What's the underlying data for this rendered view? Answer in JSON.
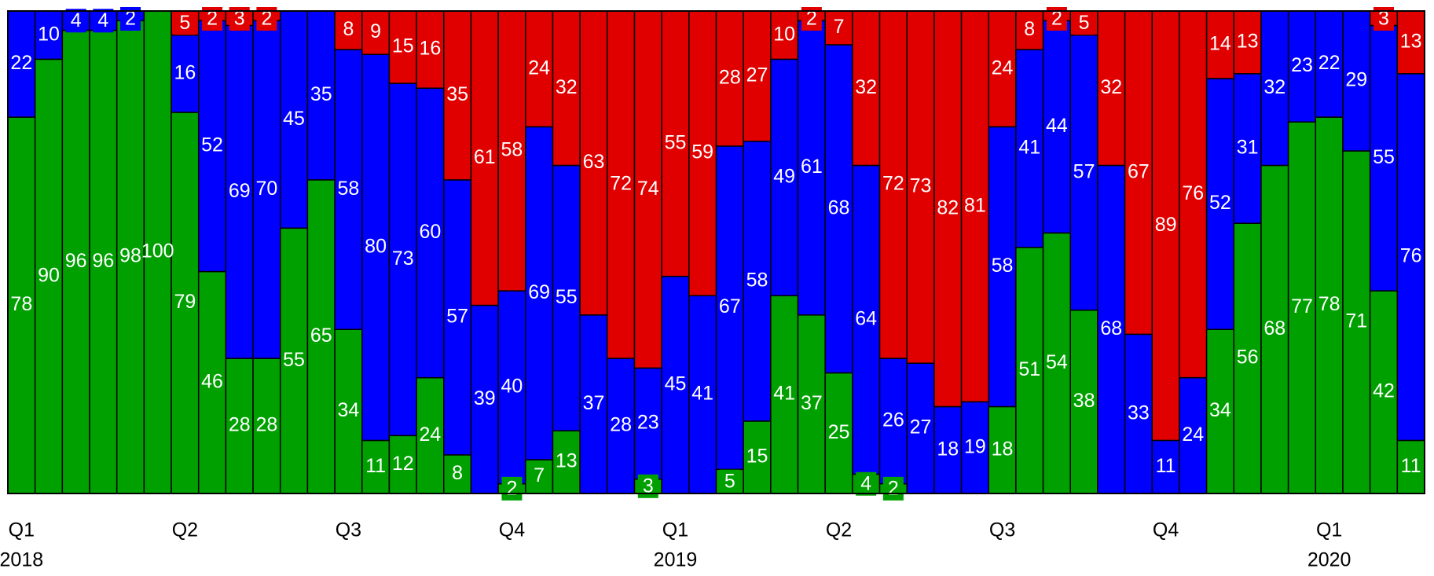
{
  "chart_data": {
    "type": "stacked_bar_100",
    "categories": [
      "Q1",
      null,
      null,
      null,
      null,
      null,
      "Q2",
      null,
      null,
      null,
      null,
      null,
      "Q3",
      null,
      null,
      null,
      null,
      null,
      "Q4",
      null,
      null,
      null,
      null,
      null,
      "Q1",
      null,
      null,
      null,
      null,
      null,
      "Q2",
      null,
      null,
      null,
      null,
      null,
      "Q3",
      null,
      null,
      null,
      null,
      null,
      "Q4",
      null,
      null,
      null,
      null,
      null,
      "Q1",
      null,
      null,
      null
    ],
    "years": [
      "2018",
      null,
      null,
      null,
      null,
      null,
      null,
      null,
      null,
      null,
      null,
      null,
      null,
      null,
      null,
      null,
      null,
      null,
      null,
      null,
      null,
      null,
      null,
      null,
      "2019",
      null,
      null,
      null,
      null,
      null,
      null,
      null,
      null,
      null,
      null,
      null,
      null,
      null,
      null,
      null,
      null,
      null,
      null,
      null,
      null,
      null,
      null,
      null,
      "2020",
      null,
      null,
      null
    ],
    "series": [
      {
        "color": "#00a000",
        "values": [
          78,
          90,
          96,
          96,
          98,
          100,
          79,
          46,
          28,
          28,
          55,
          65,
          34,
          11,
          12,
          24,
          8,
          0,
          2,
          7,
          13,
          0,
          0,
          3,
          0,
          0,
          5,
          15,
          41,
          37,
          25,
          4,
          2,
          0,
          0,
          0,
          18,
          51,
          54,
          38,
          0,
          0,
          0,
          0,
          34,
          56,
          68,
          77,
          78,
          71,
          42,
          11
        ]
      },
      {
        "color": "#0000ff",
        "values": [
          22,
          10,
          4,
          4,
          2,
          0,
          16,
          52,
          69,
          70,
          45,
          35,
          58,
          80,
          73,
          60,
          57,
          39,
          40,
          69,
          55,
          37,
          28,
          23,
          45,
          41,
          67,
          58,
          49,
          61,
          68,
          64,
          26,
          27,
          18,
          19,
          58,
          41,
          44,
          57,
          68,
          33,
          11,
          24,
          52,
          31,
          32,
          23,
          22,
          29,
          55,
          76
        ]
      },
      {
        "color": "#e00000",
        "values": [
          0,
          0,
          0,
          0,
          0,
          0,
          5,
          2,
          3,
          2,
          0,
          0,
          8,
          9,
          15,
          16,
          35,
          61,
          58,
          24,
          32,
          63,
          72,
          74,
          55,
          59,
          28,
          27,
          10,
          2,
          7,
          32,
          72,
          73,
          82,
          81,
          24,
          8,
          2,
          5,
          32,
          67,
          89,
          76,
          14,
          13,
          0,
          0,
          0,
          0,
          3,
          13
        ]
      }
    ],
    "ylim": [
      0,
      100
    ]
  }
}
